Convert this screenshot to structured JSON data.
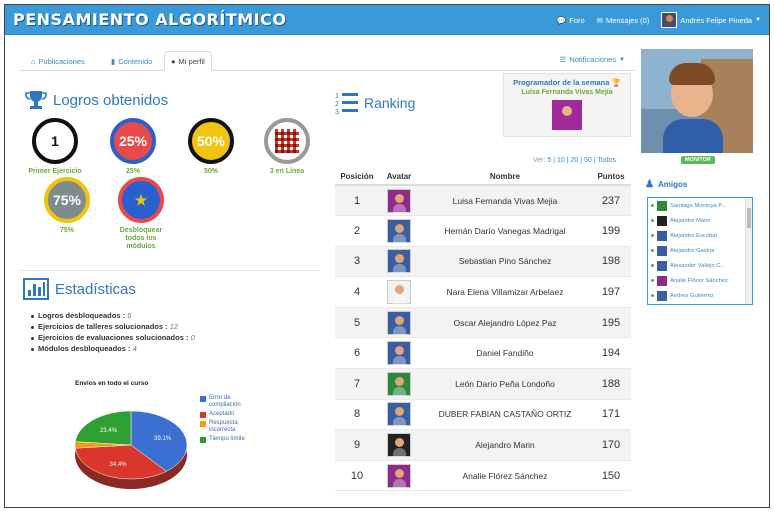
{
  "nav": {
    "brand": "PENSAMIENTO ALGORÍTMICO",
    "foro": "Foro",
    "mensajes": "Mensajes (0)",
    "user": "Andrés Felipe Pineda"
  },
  "tabs": {
    "publicaciones": "Publicaciones",
    "contenido": "Contenido",
    "perfil": "Mi perfil",
    "notificaciones": "Notificaciones"
  },
  "logros": {
    "title": "Logros obtenidos",
    "badges": [
      {
        "face": "1",
        "label": "Primer Ejercicio"
      },
      {
        "face": "25%",
        "label": "25%"
      },
      {
        "face": "50%",
        "label": "50%"
      },
      {
        "face": "",
        "label": "3 en Línea"
      },
      {
        "face": "75%",
        "label": "75%"
      },
      {
        "face": "★",
        "label": "Desbloquear todos los módulos"
      }
    ]
  },
  "estadisticas": {
    "title": "Estadísticas",
    "items": [
      {
        "label": "Logros desbloqueados :",
        "value": "6"
      },
      {
        "label": "Ejercicios de talleres solucionados :",
        "value": "12"
      },
      {
        "label": "Ejercicios de evaluaciones solucionados :",
        "value": "0"
      },
      {
        "label": "Módulos desbloqueados :",
        "value": "4"
      }
    ]
  },
  "chart_data": {
    "type": "pie",
    "title": "Envios en todo el curso",
    "labels": [
      "Error de compilación",
      "Aceptado",
      "Respuesta incorrecta",
      "Tiempo límite"
    ],
    "values": [
      39.1,
      34.4,
      3.1,
      23.4
    ],
    "colors": [
      "#3b6fd1",
      "#d9372b",
      "#f39c12",
      "#2ea02f"
    ],
    "data_labels": [
      "39.1%",
      "34.4%",
      "",
      "23.4%"
    ]
  },
  "ranking": {
    "title": "Ranking",
    "programador": {
      "title": "Programador de la semana",
      "name": "Luisa Fernanda Vivas Mejía"
    },
    "ver_label": "Ver:",
    "ver_options": "5 | 10 | 20 | 50 | Todos",
    "columns": [
      "Posición",
      "Avatar",
      "Nombre",
      "Puntos"
    ],
    "rows": [
      {
        "pos": "1",
        "name": "Luisa Fernanda Vivas Mejia",
        "pts": "237",
        "color": "#8e2a8a"
      },
      {
        "pos": "2",
        "name": "Hernán Darío Vanegas Madrigal",
        "pts": "199",
        "color": "#3a5fa0"
      },
      {
        "pos": "3",
        "name": "Sebastian Pino Sánchez",
        "pts": "198",
        "color": "#3a5fa0"
      },
      {
        "pos": "4",
        "name": "Nara Elena Villamizar Arbelaez",
        "pts": "197",
        "color": "#f2f2f2"
      },
      {
        "pos": "5",
        "name": "Oscar Alejandro López Paz",
        "pts": "195",
        "color": "#3a5fa0"
      },
      {
        "pos": "6",
        "name": "Daniel Fandiño",
        "pts": "194",
        "color": "#3a5fa0"
      },
      {
        "pos": "7",
        "name": "León Darío Peña Londoño",
        "pts": "188",
        "color": "#2a8a3a"
      },
      {
        "pos": "8",
        "name": "DUBER FABIAN CASTAÑO ORTIZ",
        "pts": "171",
        "color": "#3a5fa0"
      },
      {
        "pos": "9",
        "name": "Alejandro Marin",
        "pts": "170",
        "color": "#222222"
      },
      {
        "pos": "10",
        "name": "Analie Flórez Sánchez",
        "pts": "150",
        "color": "#8e2a8a"
      }
    ]
  },
  "sidebar": {
    "monitor_label": "MONITOR",
    "amigos_title": "Amigos",
    "amigos": [
      {
        "name": "Santiago Montoya P...",
        "color": "#2a8a3a"
      },
      {
        "name": "Alejandro Marin",
        "color": "#222222"
      },
      {
        "name": "Alejandro Escobar",
        "color": "#3a5fa0"
      },
      {
        "name": "Alejandro Gaviria",
        "color": "#3a5fa0"
      },
      {
        "name": "Alexander Vallejo C...",
        "color": "#3a5fa0"
      },
      {
        "name": "Analie Flórez Sánchez",
        "color": "#8e2a8a"
      },
      {
        "name": "Andres Gutierrez",
        "color": "#3a5fa0"
      }
    ]
  }
}
